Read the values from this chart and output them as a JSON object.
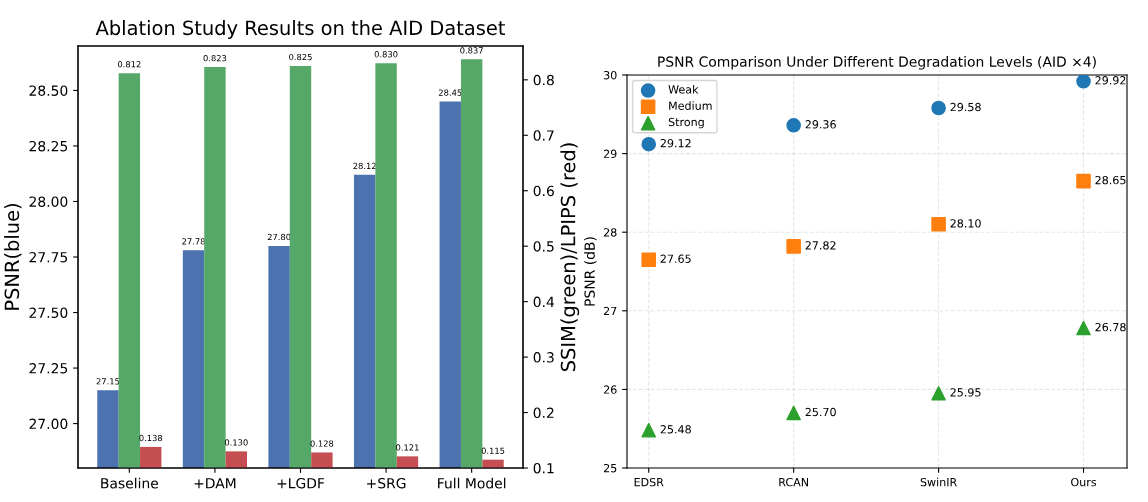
{
  "chart_data": [
    {
      "type": "bar",
      "title": "Ablation Study Results on the AID Dataset",
      "ylabel": "PSNR(blue)",
      "y2label": "SSIM(green)/LPIPS (red)",
      "categories": [
        "Baseline",
        "+DAM",
        "+LGDF",
        "+SRG",
        "Full Model"
      ],
      "series": [
        {
          "color": "#4c72b0",
          "values": [
            27.15,
            27.78,
            27.8,
            28.12,
            28.45
          ],
          "value_labels": [
            "27.15",
            "27.78",
            "27.80",
            "28.12",
            "28.45"
          ]
        },
        {
          "color": "#55a868",
          "axis": "y2",
          "values": [
            0.812,
            0.823,
            0.825,
            0.83,
            0.837
          ],
          "value_labels": [
            "0.812",
            "0.823",
            "0.825",
            "0.830",
            "0.837"
          ]
        },
        {
          "color": "#c44e52",
          "axis": "y2",
          "values": [
            0.138,
            0.13,
            0.128,
            0.121,
            0.115
          ],
          "value_labels": [
            "0.138",
            "0.130",
            "0.128",
            "0.121",
            "0.115"
          ]
        }
      ],
      "ylim": [
        26.8,
        28.7
      ],
      "yticks": [
        {
          "value": 27.0,
          "label": "27.00"
        },
        {
          "value": 27.25,
          "label": "27.25"
        },
        {
          "value": 27.5,
          "label": "27.50"
        },
        {
          "value": 27.75,
          "label": "27.75"
        },
        {
          "value": 28.0,
          "label": "28.00"
        },
        {
          "value": 28.25,
          "label": "28.25"
        },
        {
          "value": 28.5,
          "label": "28.50"
        }
      ],
      "y2lim": [
        0.1,
        0.861
      ],
      "y2ticks": [
        0.1,
        0.2,
        0.3,
        0.4,
        0.5,
        0.6,
        0.7,
        0.8
      ],
      "grid": false
    },
    {
      "type": "scatter",
      "title": "PSNR Comparison Under Different Degradation Levels (AID ×4)",
      "ylabel": "PSNR (dB)",
      "categories": [
        "EDSR",
        "RCAN",
        "SwinIR",
        "Ours"
      ],
      "series": [
        {
          "name": "Weak",
          "color": "#1f77b4",
          "marker": "circle",
          "values": [
            29.12,
            29.36,
            29.58,
            29.92
          ],
          "value_labels": [
            "29.12",
            "29.36",
            "29.58",
            "29.92"
          ]
        },
        {
          "name": "Medium",
          "color": "#ff7f0e",
          "marker": "square",
          "values": [
            27.65,
            27.82,
            28.1,
            28.65
          ],
          "value_labels": [
            "27.65",
            "27.82",
            "28.10",
            "28.65"
          ]
        },
        {
          "name": "Strong",
          "color": "#2ca02c",
          "marker": "triangle",
          "values": [
            25.48,
            25.7,
            25.95,
            26.78
          ],
          "value_labels": [
            "25.48",
            "25.70",
            "25.95",
            "26.78"
          ]
        }
      ],
      "ylim": [
        25,
        30
      ],
      "yticks": [
        25,
        26,
        27,
        28,
        29,
        30
      ],
      "grid": true,
      "legend": "top left"
    }
  ]
}
